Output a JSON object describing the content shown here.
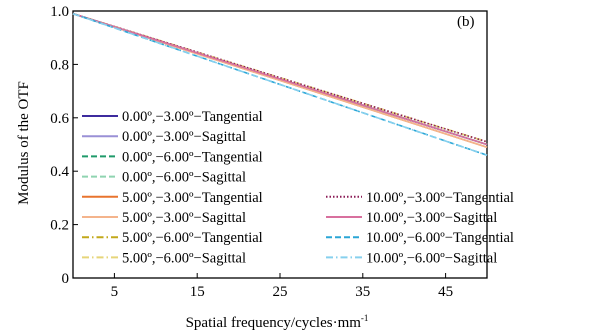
{
  "chart_data": {
    "type": "line",
    "panel_label": "(b)",
    "xlabel_main": "Spatial frequency/cycles·mm",
    "xlabel_sup": "-1",
    "ylabel": "Modulus of the OTF",
    "xlim": [
      0,
      50
    ],
    "ylim": [
      0,
      1.0
    ],
    "xticks": [
      5,
      15,
      25,
      35,
      45
    ],
    "xtick_labels": [
      "5",
      "15",
      "25",
      "35",
      "45"
    ],
    "yticks": [
      0,
      0.2,
      0.4,
      0.6,
      0.8,
      1.0
    ],
    "ytick_labels": [
      "0",
      "0.2",
      "0.4",
      "0.6",
      "0.8",
      "1.0"
    ],
    "grid": false,
    "legend_placement": "lower-left",
    "series": [
      {
        "name": "0.00º,−3.00º−Tangential",
        "color": "#3d2b9e",
        "dash": "solid",
        "x": [
          0,
          50
        ],
        "y": [
          0.99,
          0.5
        ]
      },
      {
        "name": "0.00º,−3.00º−Sagittal",
        "color": "#9a90d6",
        "dash": "solid",
        "x": [
          0,
          50
        ],
        "y": [
          0.99,
          0.5
        ]
      },
      {
        "name": "0.00º,−6.00º−Tangential",
        "color": "#1f9a6a",
        "dash": "dash",
        "x": [
          0,
          50
        ],
        "y": [
          0.99,
          0.5
        ]
      },
      {
        "name": "0.00º,−6.00º−Sagittal",
        "color": "#8fd4b0",
        "dash": "dash",
        "x": [
          0,
          50
        ],
        "y": [
          0.99,
          0.5
        ]
      },
      {
        "name": "5.00º,−3.00º−Tangential",
        "color": "#e8742e",
        "dash": "solid",
        "x": [
          0,
          50
        ],
        "y": [
          0.99,
          0.49
        ]
      },
      {
        "name": "5.00º,−3.00º−Sagittal",
        "color": "#f4b48c",
        "dash": "solid",
        "x": [
          0,
          50
        ],
        "y": [
          0.99,
          0.49
        ]
      },
      {
        "name": "5.00º,−6.00º−Tangential",
        "color": "#c2a81a",
        "dash": "dashdot",
        "x": [
          0,
          50
        ],
        "y": [
          0.99,
          0.51
        ]
      },
      {
        "name": "5.00º,−6.00º−Sagittal",
        "color": "#e6d57a",
        "dash": "dashdot",
        "x": [
          0,
          50
        ],
        "y": [
          0.99,
          0.51
        ]
      },
      {
        "name": "10.00º,−3.00º−Tangential",
        "color": "#8a1a55",
        "dash": "dot",
        "x": [
          0,
          50
        ],
        "y": [
          0.99,
          0.51
        ]
      },
      {
        "name": "10.00º,−3.00º−Sagittal",
        "color": "#d8709e",
        "dash": "solid",
        "x": [
          0,
          50
        ],
        "y": [
          0.99,
          0.5
        ]
      },
      {
        "name": "10.00º,−6.00º−Tangential",
        "color": "#2aa6d6",
        "dash": "dash",
        "x": [
          0,
          50
        ],
        "y": [
          0.99,
          0.46
        ]
      },
      {
        "name": "10.00º,−6.00º−Sagittal",
        "color": "#86d0ee",
        "dash": "dashdot",
        "x": [
          0,
          50
        ],
        "y": [
          0.99,
          0.46
        ]
      }
    ]
  }
}
